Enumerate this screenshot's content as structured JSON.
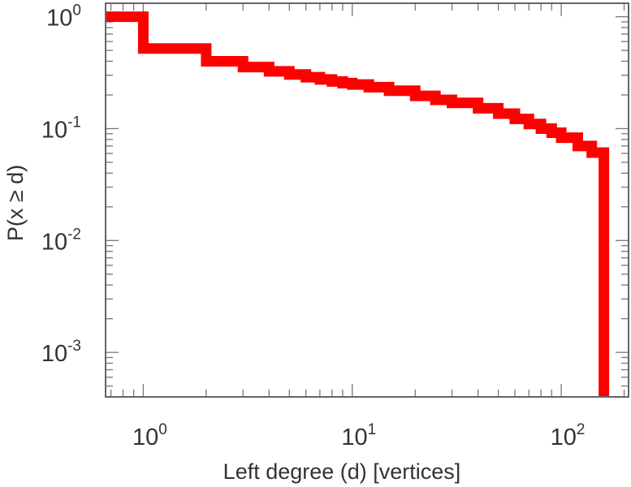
{
  "chart_data": {
    "type": "line",
    "style": "step",
    "x_scale": "log",
    "y_scale": "log",
    "xlabel": "Left degree (d) [vertices]",
    "ylabel": "P(x ≥ d)",
    "xlim": [
      0.66,
      210
    ],
    "ylim": [
      0.0004,
      1.32
    ],
    "x_ticks": [
      {
        "value": 1,
        "base": "10",
        "exp": "0"
      },
      {
        "value": 10,
        "base": "10",
        "exp": "1"
      },
      {
        "value": 100,
        "base": "10",
        "exp": "2"
      }
    ],
    "y_ticks": [
      {
        "value": 1,
        "base": "10",
        "exp": "0"
      },
      {
        "value": 0.1,
        "base": "10",
        "exp": "-1"
      },
      {
        "value": 0.01,
        "base": "10",
        "exp": "-2"
      },
      {
        "value": 0.001,
        "base": "10",
        "exp": "-3"
      }
    ],
    "grid": false,
    "series": [
      {
        "color": "#ff0000",
        "x": [
          0.66,
          1,
          2,
          3,
          4,
          5,
          6,
          7,
          8,
          9,
          10,
          12,
          15,
          20,
          25,
          30,
          40,
          50,
          60,
          70,
          80,
          90,
          100,
          120,
          140,
          160,
          160
        ],
        "y": [
          1.0,
          0.52,
          0.4,
          0.355,
          0.325,
          0.305,
          0.288,
          0.275,
          0.264,
          0.255,
          0.248,
          0.235,
          0.218,
          0.196,
          0.181,
          0.17,
          0.152,
          0.136,
          0.122,
          0.11,
          0.1,
          0.092,
          0.083,
          0.07,
          0.061,
          0.053,
          0.0004
        ]
      }
    ]
  }
}
